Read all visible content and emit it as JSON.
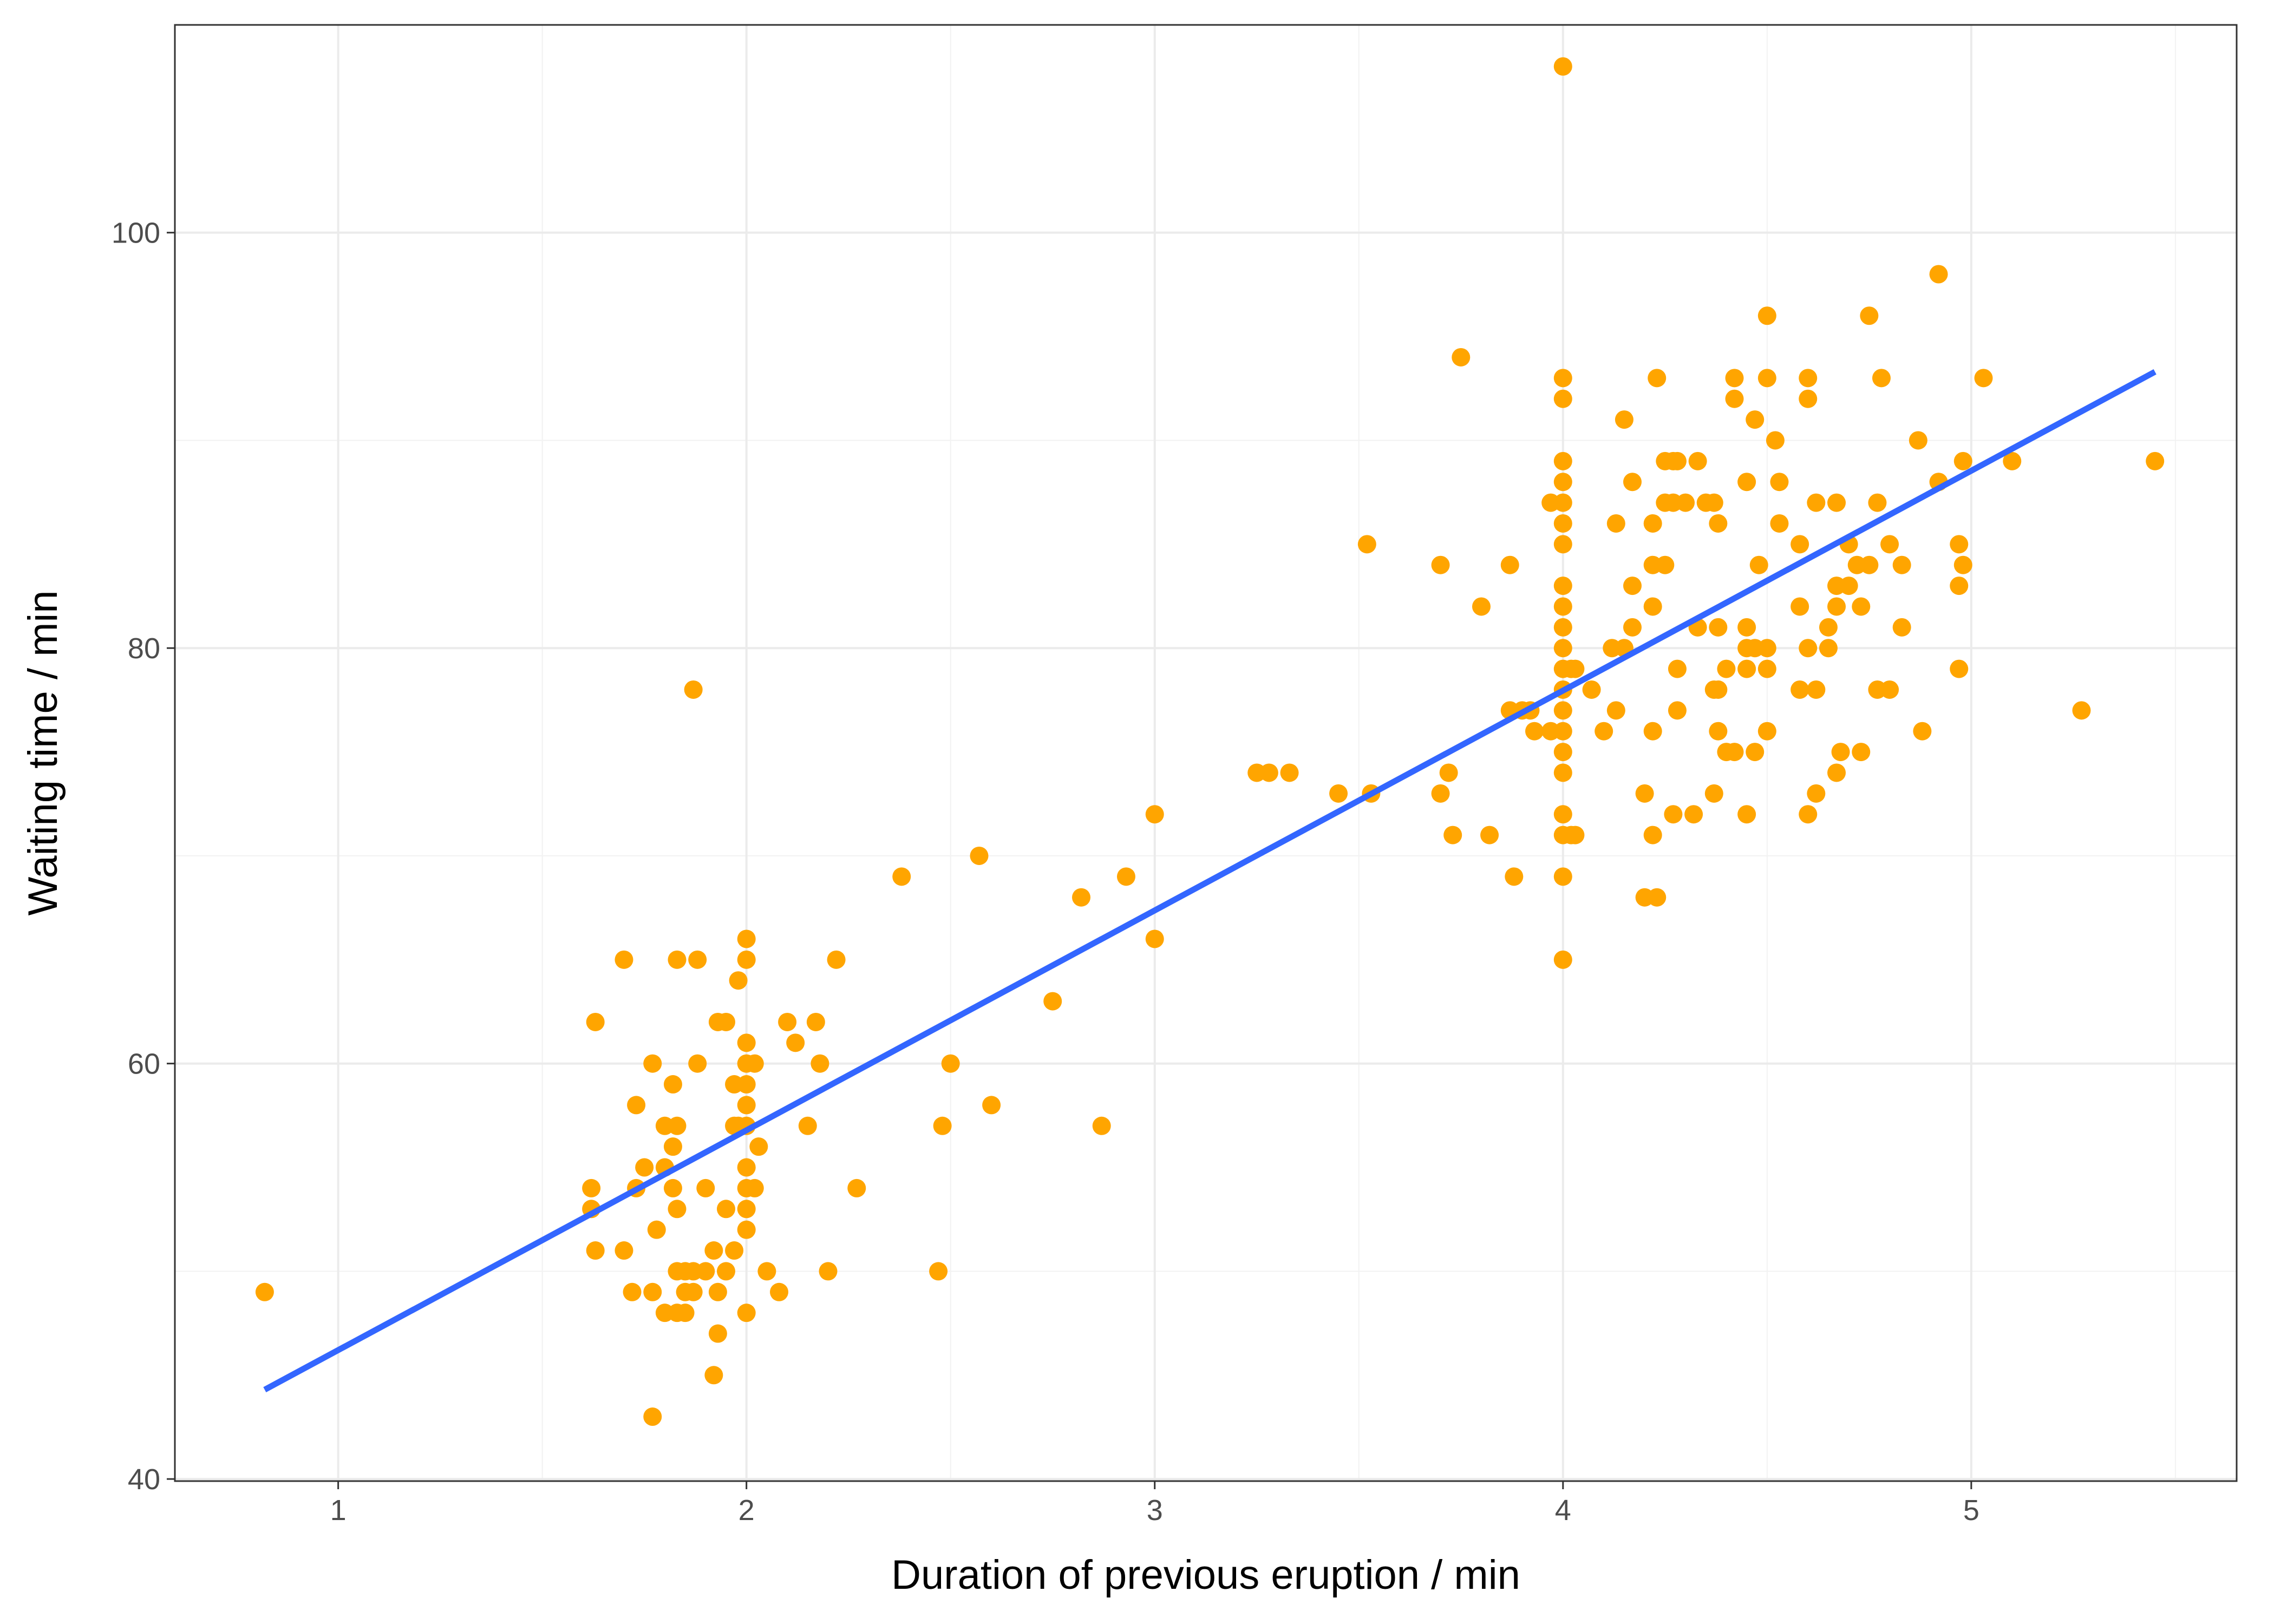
{
  "chart_data": {
    "type": "scatter",
    "xlabel": "Duration of previous eruption / min",
    "ylabel": "Waiting time / min",
    "xlim": [
      0.6,
      5.65
    ],
    "ylim": [
      39.9,
      110
    ],
    "x_ticks": [
      1,
      2,
      3,
      4,
      5
    ],
    "y_ticks": [
      40,
      60,
      80,
      100
    ],
    "grid": true,
    "legend": "none",
    "point_color": "#FFA500",
    "line_color": "#3366FF",
    "points": [
      [
        0.82,
        49
      ],
      [
        1.62,
        54
      ],
      [
        1.62,
        53
      ],
      [
        1.63,
        62
      ],
      [
        1.63,
        51
      ],
      [
        1.7,
        65
      ],
      [
        1.7,
        51
      ],
      [
        1.72,
        49
      ],
      [
        1.73,
        58
      ],
      [
        1.73,
        54
      ],
      [
        1.75,
        55
      ],
      [
        1.77,
        60
      ],
      [
        1.77,
        49
      ],
      [
        1.77,
        43
      ],
      [
        1.78,
        52
      ],
      [
        1.8,
        57
      ],
      [
        1.8,
        55
      ],
      [
        1.8,
        48
      ],
      [
        1.82,
        59
      ],
      [
        1.82,
        56
      ],
      [
        1.82,
        54
      ],
      [
        1.83,
        65
      ],
      [
        1.83,
        57
      ],
      [
        1.83,
        53
      ],
      [
        1.83,
        50
      ],
      [
        1.83,
        48
      ],
      [
        1.85,
        50
      ],
      [
        1.85,
        49
      ],
      [
        1.85,
        48
      ],
      [
        1.87,
        50
      ],
      [
        1.87,
        49
      ],
      [
        1.87,
        78
      ],
      [
        1.88,
        65
      ],
      [
        1.88,
        60
      ],
      [
        1.9,
        54
      ],
      [
        1.9,
        50
      ],
      [
        1.92,
        51
      ],
      [
        1.92,
        45
      ],
      [
        1.93,
        62
      ],
      [
        1.93,
        49
      ],
      [
        1.93,
        47
      ],
      [
        1.95,
        62
      ],
      [
        1.95,
        53
      ],
      [
        1.95,
        50
      ],
      [
        1.97,
        59
      ],
      [
        1.97,
        57
      ],
      [
        1.97,
        51
      ],
      [
        1.98,
        64
      ],
      [
        1.98,
        57
      ],
      [
        2.0,
        66
      ],
      [
        2.0,
        65
      ],
      [
        2.0,
        61
      ],
      [
        2.0,
        60
      ],
      [
        2.0,
        59
      ],
      [
        2.0,
        58
      ],
      [
        2.0,
        57
      ],
      [
        2.0,
        55
      ],
      [
        2.0,
        54
      ],
      [
        2.0,
        53
      ],
      [
        2.0,
        52
      ],
      [
        2.0,
        48
      ],
      [
        2.02,
        60
      ],
      [
        2.02,
        54
      ],
      [
        2.03,
        56
      ],
      [
        2.05,
        50
      ],
      [
        2.08,
        49
      ],
      [
        2.1,
        62
      ],
      [
        2.12,
        61
      ],
      [
        2.15,
        57
      ],
      [
        2.17,
        62
      ],
      [
        2.18,
        60
      ],
      [
        2.2,
        50
      ],
      [
        2.22,
        65
      ],
      [
        2.27,
        54
      ],
      [
        2.38,
        69
      ],
      [
        2.47,
        50
      ],
      [
        2.48,
        57
      ],
      [
        2.5,
        60
      ],
      [
        2.57,
        70
      ],
      [
        2.6,
        58
      ],
      [
        2.75,
        63
      ],
      [
        2.82,
        68
      ],
      [
        2.87,
        57
      ],
      [
        2.93,
        69
      ],
      [
        3.0,
        72
      ],
      [
        3.0,
        66
      ],
      [
        3.25,
        74
      ],
      [
        3.28,
        74
      ],
      [
        3.33,
        74
      ],
      [
        3.45,
        73
      ],
      [
        3.52,
        85
      ],
      [
        3.53,
        73
      ],
      [
        3.7,
        84
      ],
      [
        3.7,
        73
      ],
      [
        3.72,
        74
      ],
      [
        3.73,
        71
      ],
      [
        3.75,
        94
      ],
      [
        3.8,
        82
      ],
      [
        3.82,
        71
      ],
      [
        3.87,
        84
      ],
      [
        3.87,
        77
      ],
      [
        3.88,
        69
      ],
      [
        3.9,
        77
      ],
      [
        3.92,
        77
      ],
      [
        3.93,
        76
      ],
      [
        3.97,
        87
      ],
      [
        3.97,
        76
      ],
      [
        4.0,
        108
      ],
      [
        4.0,
        93
      ],
      [
        4.0,
        92
      ],
      [
        4.0,
        89
      ],
      [
        4.0,
        88
      ],
      [
        4.0,
        87
      ],
      [
        4.0,
        86
      ],
      [
        4.0,
        85
      ],
      [
        4.0,
        83
      ],
      [
        4.0,
        82
      ],
      [
        4.0,
        81
      ],
      [
        4.0,
        80
      ],
      [
        4.0,
        79
      ],
      [
        4.0,
        78
      ],
      [
        4.0,
        77
      ],
      [
        4.0,
        76
      ],
      [
        4.0,
        75
      ],
      [
        4.0,
        74
      ],
      [
        4.0,
        72
      ],
      [
        4.0,
        71
      ],
      [
        4.0,
        69
      ],
      [
        4.0,
        65
      ],
      [
        4.02,
        79
      ],
      [
        4.02,
        71
      ],
      [
        4.03,
        79
      ],
      [
        4.03,
        71
      ],
      [
        4.07,
        78
      ],
      [
        4.1,
        76
      ],
      [
        4.12,
        80
      ],
      [
        4.13,
        86
      ],
      [
        4.13,
        77
      ],
      [
        4.15,
        91
      ],
      [
        4.15,
        80
      ],
      [
        4.17,
        88
      ],
      [
        4.17,
        83
      ],
      [
        4.17,
        81
      ],
      [
        4.2,
        73
      ],
      [
        4.2,
        68
      ],
      [
        4.22,
        86
      ],
      [
        4.22,
        84
      ],
      [
        4.22,
        82
      ],
      [
        4.22,
        76
      ],
      [
        4.22,
        71
      ],
      [
        4.23,
        93
      ],
      [
        4.23,
        68
      ],
      [
        4.25,
        89
      ],
      [
        4.25,
        87
      ],
      [
        4.25,
        84
      ],
      [
        4.27,
        89
      ],
      [
        4.27,
        87
      ],
      [
        4.27,
        72
      ],
      [
        4.28,
        89
      ],
      [
        4.28,
        79
      ],
      [
        4.28,
        77
      ],
      [
        4.3,
        87
      ],
      [
        4.32,
        72
      ],
      [
        4.33,
        89
      ],
      [
        4.33,
        81
      ],
      [
        4.35,
        87
      ],
      [
        4.37,
        87
      ],
      [
        4.37,
        78
      ],
      [
        4.37,
        73
      ],
      [
        4.38,
        86
      ],
      [
        4.38,
        81
      ],
      [
        4.38,
        78
      ],
      [
        4.38,
        76
      ],
      [
        4.4,
        79
      ],
      [
        4.4,
        75
      ],
      [
        4.42,
        93
      ],
      [
        4.42,
        92
      ],
      [
        4.42,
        75
      ],
      [
        4.45,
        88
      ],
      [
        4.45,
        81
      ],
      [
        4.45,
        80
      ],
      [
        4.45,
        79
      ],
      [
        4.45,
        72
      ],
      [
        4.47,
        91
      ],
      [
        4.47,
        80
      ],
      [
        4.47,
        75
      ],
      [
        4.48,
        84
      ],
      [
        4.5,
        96
      ],
      [
        4.5,
        93
      ],
      [
        4.5,
        80
      ],
      [
        4.5,
        79
      ],
      [
        4.5,
        76
      ],
      [
        4.52,
        90
      ],
      [
        4.53,
        88
      ],
      [
        4.53,
        86
      ],
      [
        4.58,
        85
      ],
      [
        4.58,
        82
      ],
      [
        4.58,
        78
      ],
      [
        4.6,
        93
      ],
      [
        4.6,
        92
      ],
      [
        4.6,
        80
      ],
      [
        4.6,
        72
      ],
      [
        4.62,
        87
      ],
      [
        4.62,
        78
      ],
      [
        4.62,
        73
      ],
      [
        4.65,
        81
      ],
      [
        4.65,
        80
      ],
      [
        4.67,
        87
      ],
      [
        4.67,
        83
      ],
      [
        4.67,
        82
      ],
      [
        4.67,
        74
      ],
      [
        4.68,
        75
      ],
      [
        4.7,
        85
      ],
      [
        4.7,
        83
      ],
      [
        4.72,
        84
      ],
      [
        4.73,
        82
      ],
      [
        4.73,
        75
      ],
      [
        4.75,
        96
      ],
      [
        4.75,
        84
      ],
      [
        4.77,
        87
      ],
      [
        4.77,
        78
      ],
      [
        4.78,
        93
      ],
      [
        4.8,
        85
      ],
      [
        4.8,
        78
      ],
      [
        4.83,
        84
      ],
      [
        4.83,
        81
      ],
      [
        4.87,
        90
      ],
      [
        4.88,
        76
      ],
      [
        4.92,
        98
      ],
      [
        4.92,
        88
      ],
      [
        4.97,
        85
      ],
      [
        4.97,
        83
      ],
      [
        4.97,
        79
      ],
      [
        4.98,
        89
      ],
      [
        4.98,
        84
      ],
      [
        5.03,
        93
      ],
      [
        5.1,
        89
      ],
      [
        5.27,
        77
      ],
      [
        5.45,
        89
      ]
    ],
    "fit_line": {
      "type": "linear",
      "x": [
        0.82,
        5.45
      ],
      "y": [
        44.3,
        93.3
      ]
    }
  }
}
